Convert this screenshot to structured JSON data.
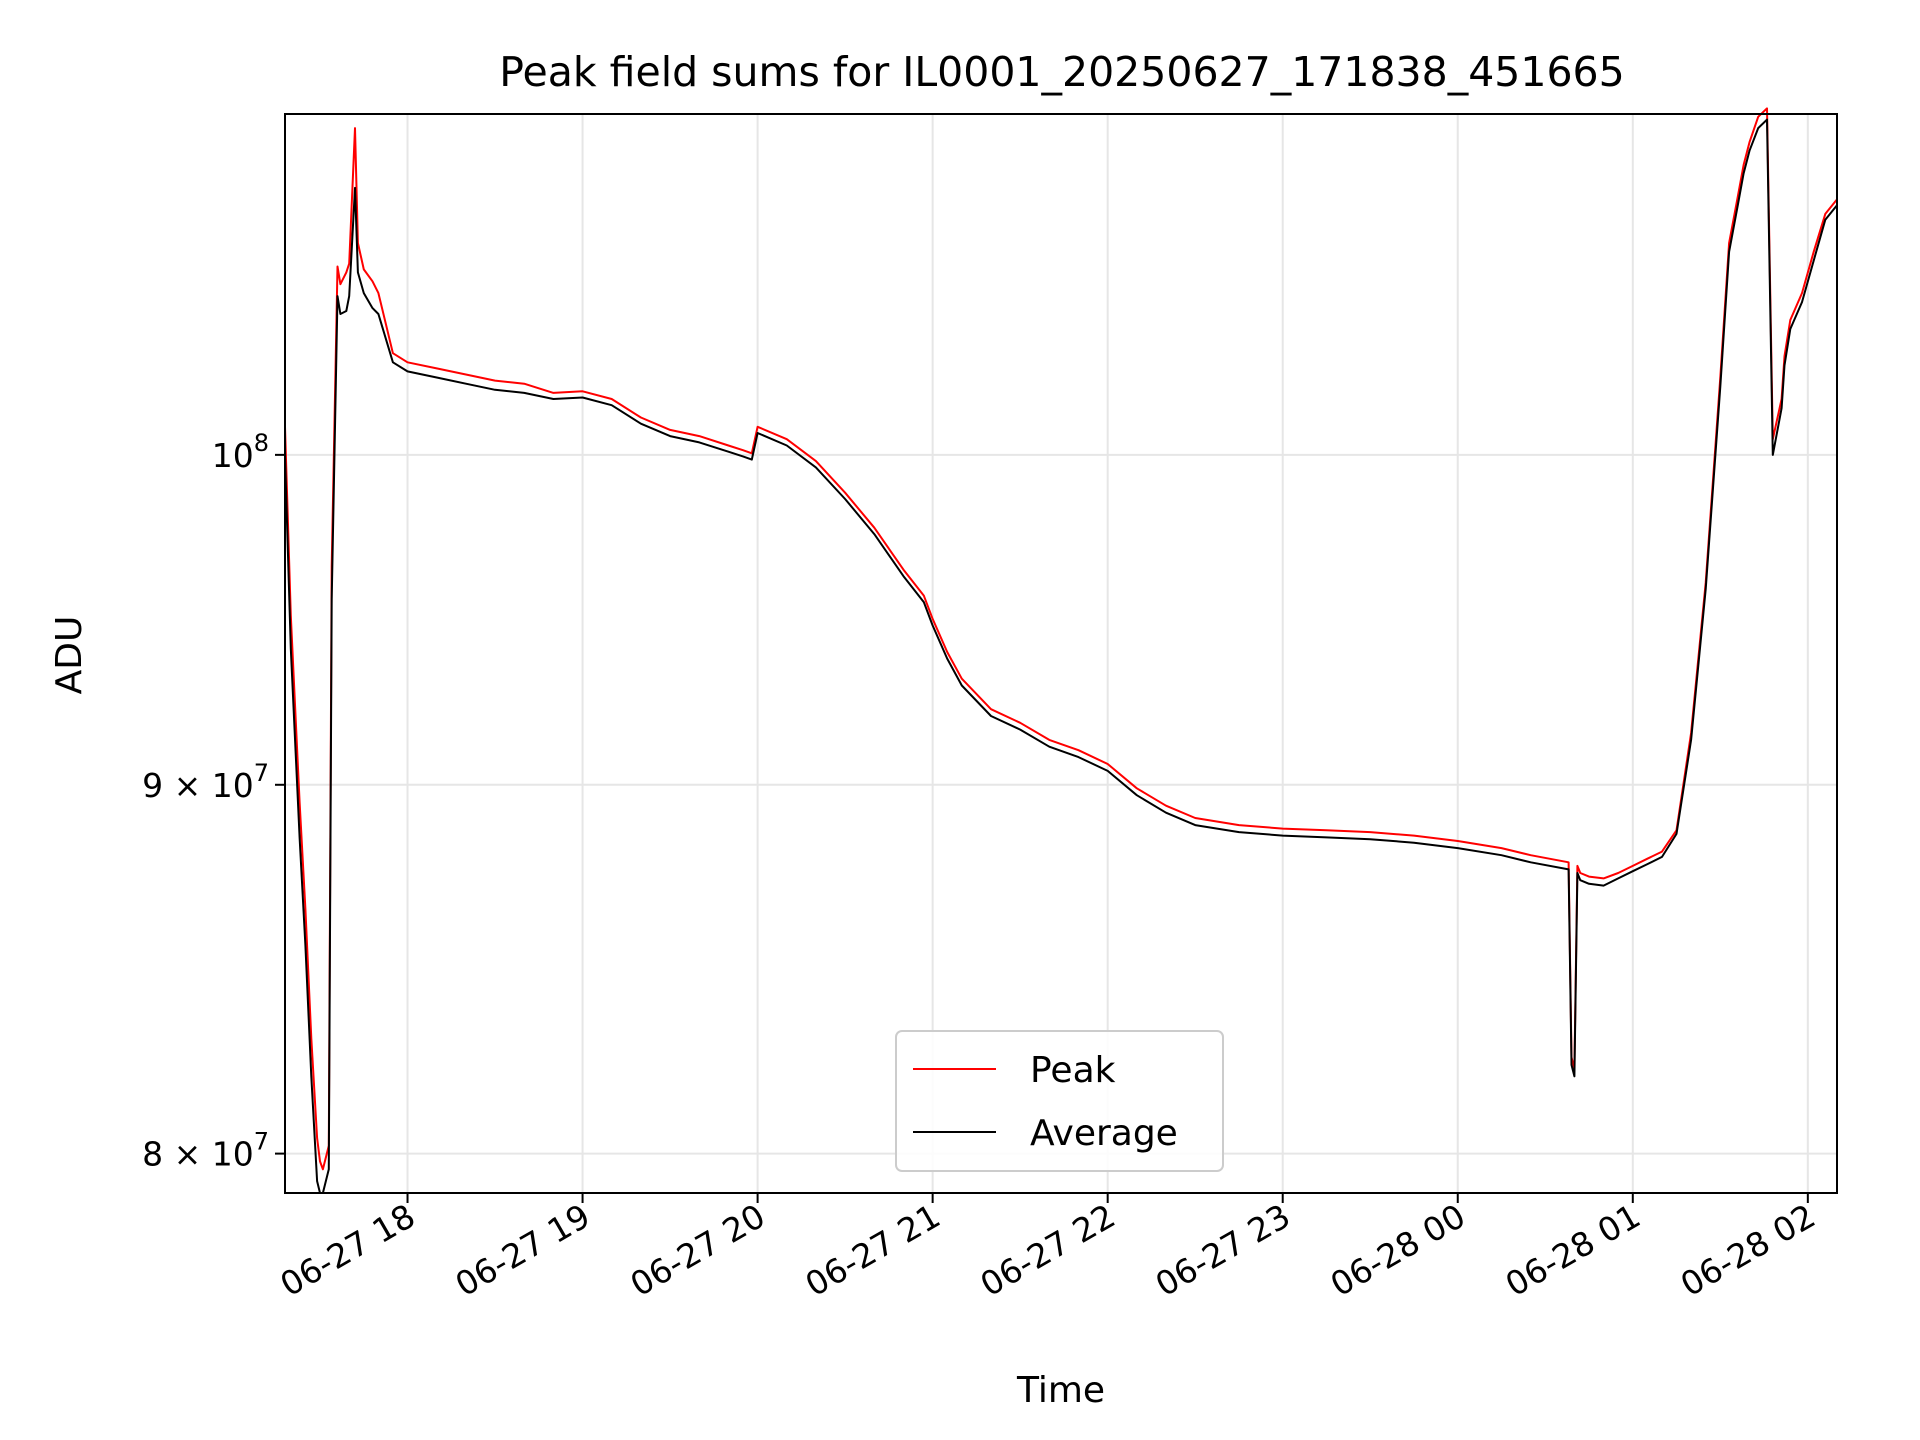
{
  "chart_data": {
    "type": "line",
    "title": "Peak field sums for IL0001_20250627_171838_451665",
    "xlabel": "Time",
    "ylabel": "ADU",
    "y_scale": "log",
    "ylim": [
      79000000,
      111500000
    ],
    "xlim": [
      "2025-06-27 17:18",
      "2025-06-28 02:10"
    ],
    "grid": true,
    "legend_position": "lower center",
    "x_ticks": [
      {
        "time": "2025-06-27 18:00",
        "label": "06-27 18"
      },
      {
        "time": "2025-06-27 19:00",
        "label": "06-27 19"
      },
      {
        "time": "2025-06-27 20:00",
        "label": "06-27 20"
      },
      {
        "time": "2025-06-27 21:00",
        "label": "06-27 21"
      },
      {
        "time": "2025-06-27 22:00",
        "label": "06-27 22"
      },
      {
        "time": "2025-06-27 23:00",
        "label": "06-27 23"
      },
      {
        "time": "2025-06-28 00:00",
        "label": "06-28 00"
      },
      {
        "time": "2025-06-28 01:00",
        "label": "06-28 01"
      },
      {
        "time": "2025-06-28 02:00",
        "label": "06-28 02"
      }
    ],
    "y_ticks": [
      {
        "value": 80000000,
        "base": "8",
        "mid": "×",
        "pow": "10",
        "exp": "7"
      },
      {
        "value": 90000000,
        "base": "9",
        "mid": "×",
        "pow": "10",
        "exp": "7"
      },
      {
        "value": 100000000,
        "base": "",
        "mid": "",
        "pow": "10",
        "exp": "8"
      }
    ],
    "x": [
      "2025-06-27 17:18",
      "2025-06-27 17:20",
      "2025-06-27 17:23",
      "2025-06-27 17:25",
      "2025-06-27 17:27",
      "2025-06-27 17:29",
      "2025-06-27 17:30",
      "2025-06-27 17:31",
      "2025-06-27 17:33",
      "2025-06-27 17:34",
      "2025-06-27 17:36",
      "2025-06-27 17:37",
      "2025-06-27 17:39",
      "2025-06-27 17:40",
      "2025-06-27 17:42",
      "2025-06-27 17:43",
      "2025-06-27 17:45",
      "2025-06-27 17:48",
      "2025-06-27 17:50",
      "2025-06-27 17:55",
      "2025-06-27 18:00",
      "2025-06-27 18:10",
      "2025-06-27 18:20",
      "2025-06-27 18:30",
      "2025-06-27 18:40",
      "2025-06-27 18:50",
      "2025-06-27 19:00",
      "2025-06-27 19:10",
      "2025-06-27 19:20",
      "2025-06-27 19:30",
      "2025-06-27 19:40",
      "2025-06-27 19:50",
      "2025-06-27 19:55",
      "2025-06-27 19:58",
      "2025-06-27 20:00",
      "2025-06-27 20:10",
      "2025-06-27 20:20",
      "2025-06-27 20:30",
      "2025-06-27 20:40",
      "2025-06-27 20:50",
      "2025-06-27 20:57",
      "2025-06-27 21:00",
      "2025-06-27 21:05",
      "2025-06-27 21:10",
      "2025-06-27 21:20",
      "2025-06-27 21:30",
      "2025-06-27 21:40",
      "2025-06-27 21:50",
      "2025-06-27 22:00",
      "2025-06-27 22:10",
      "2025-06-27 22:20",
      "2025-06-27 22:30",
      "2025-06-27 22:45",
      "2025-06-27 23:00",
      "2025-06-27 23:15",
      "2025-06-27 23:30",
      "2025-06-27 23:45",
      "2025-06-28 00:00",
      "2025-06-28 00:15",
      "2025-06-28 00:25",
      "2025-06-28 00:38",
      "2025-06-28 00:39",
      "2025-06-28 00:40",
      "2025-06-28 00:41",
      "2025-06-28 00:42",
      "2025-06-28 00:45",
      "2025-06-28 00:50",
      "2025-06-28 00:55",
      "2025-06-28 01:00",
      "2025-06-28 01:05",
      "2025-06-28 01:10",
      "2025-06-28 01:15",
      "2025-06-28 01:20",
      "2025-06-28 01:25",
      "2025-06-28 01:30",
      "2025-06-28 01:33",
      "2025-06-28 01:36",
      "2025-06-28 01:38",
      "2025-06-28 01:40",
      "2025-06-28 01:43",
      "2025-06-28 01:46",
      "2025-06-28 01:48",
      "2025-06-28 01:51",
      "2025-06-28 01:52",
      "2025-06-28 01:54",
      "2025-06-28 01:58",
      "2025-06-28 02:02",
      "2025-06-28 02:06",
      "2025-06-28 02:10"
    ],
    "series": [
      {
        "name": "Peak",
        "color": "#ff0000",
        "values": [
          100900000,
          95000000,
          89500000,
          86500000,
          83000000,
          80400000,
          79800000,
          79600000,
          80200000,
          96500000,
          106200000,
          105600000,
          106000000,
          106300000,
          111000000,
          107000000,
          106100000,
          105700000,
          105300000,
          103300000,
          103000000,
          102800000,
          102600000,
          102400000,
          102300000,
          102000000,
          102050000,
          101800000,
          101200000,
          100800000,
          100600000,
          100300000,
          100150000,
          100050000,
          100900000,
          100500000,
          99800000,
          98800000,
          97700000,
          96400000,
          95600000,
          94900000,
          93900000,
          93100000,
          92200000,
          91800000,
          91300000,
          91000000,
          90600000,
          89900000,
          89400000,
          89050000,
          88850000,
          88750000,
          88700000,
          88650000,
          88550000,
          88400000,
          88200000,
          88000000,
          87800000,
          82500000,
          82200000,
          87700000,
          87500000,
          87400000,
          87350000,
          87500000,
          87700000,
          87900000,
          88100000,
          88700000,
          91500000,
          96000000,
          102500000,
          107000000,
          108600000,
          109700000,
          110500000,
          111400000,
          111700000,
          100500000,
          101800000,
          103200000,
          104400000,
          105300000,
          106700000,
          108000000,
          108500000
        ]
      },
      {
        "name": "Average",
        "color": "#000000",
        "values": [
          100000000,
          94000000,
          88500000,
          85500000,
          82000000,
          79300000,
          79000000,
          79000000,
          79600000,
          95500000,
          105200000,
          104600000,
          104700000,
          105200000,
          108900000,
          106000000,
          105300000,
          104800000,
          104600000,
          103000000,
          102700000,
          102500000,
          102300000,
          102100000,
          102000000,
          101800000,
          101850000,
          101600000,
          101000000,
          100600000,
          100400000,
          100100000,
          99950000,
          99850000,
          100700000,
          100300000,
          99600000,
          98600000,
          97500000,
          96200000,
          95400000,
          94700000,
          93700000,
          92900000,
          92000000,
          91600000,
          91100000,
          90800000,
          90400000,
          89700000,
          89200000,
          88850000,
          88650000,
          88550000,
          88500000,
          88450000,
          88350000,
          88200000,
          88000000,
          87800000,
          87600000,
          82300000,
          82000000,
          87500000,
          87300000,
          87200000,
          87150000,
          87350000,
          87550000,
          87750000,
          87950000,
          88600000,
          91300000,
          95800000,
          102200000,
          106700000,
          108300000,
          109400000,
          110200000,
          111000000,
          111300000,
          100000000,
          101500000,
          102900000,
          104100000,
          105000000,
          106400000,
          107800000,
          108300000
        ]
      }
    ]
  }
}
